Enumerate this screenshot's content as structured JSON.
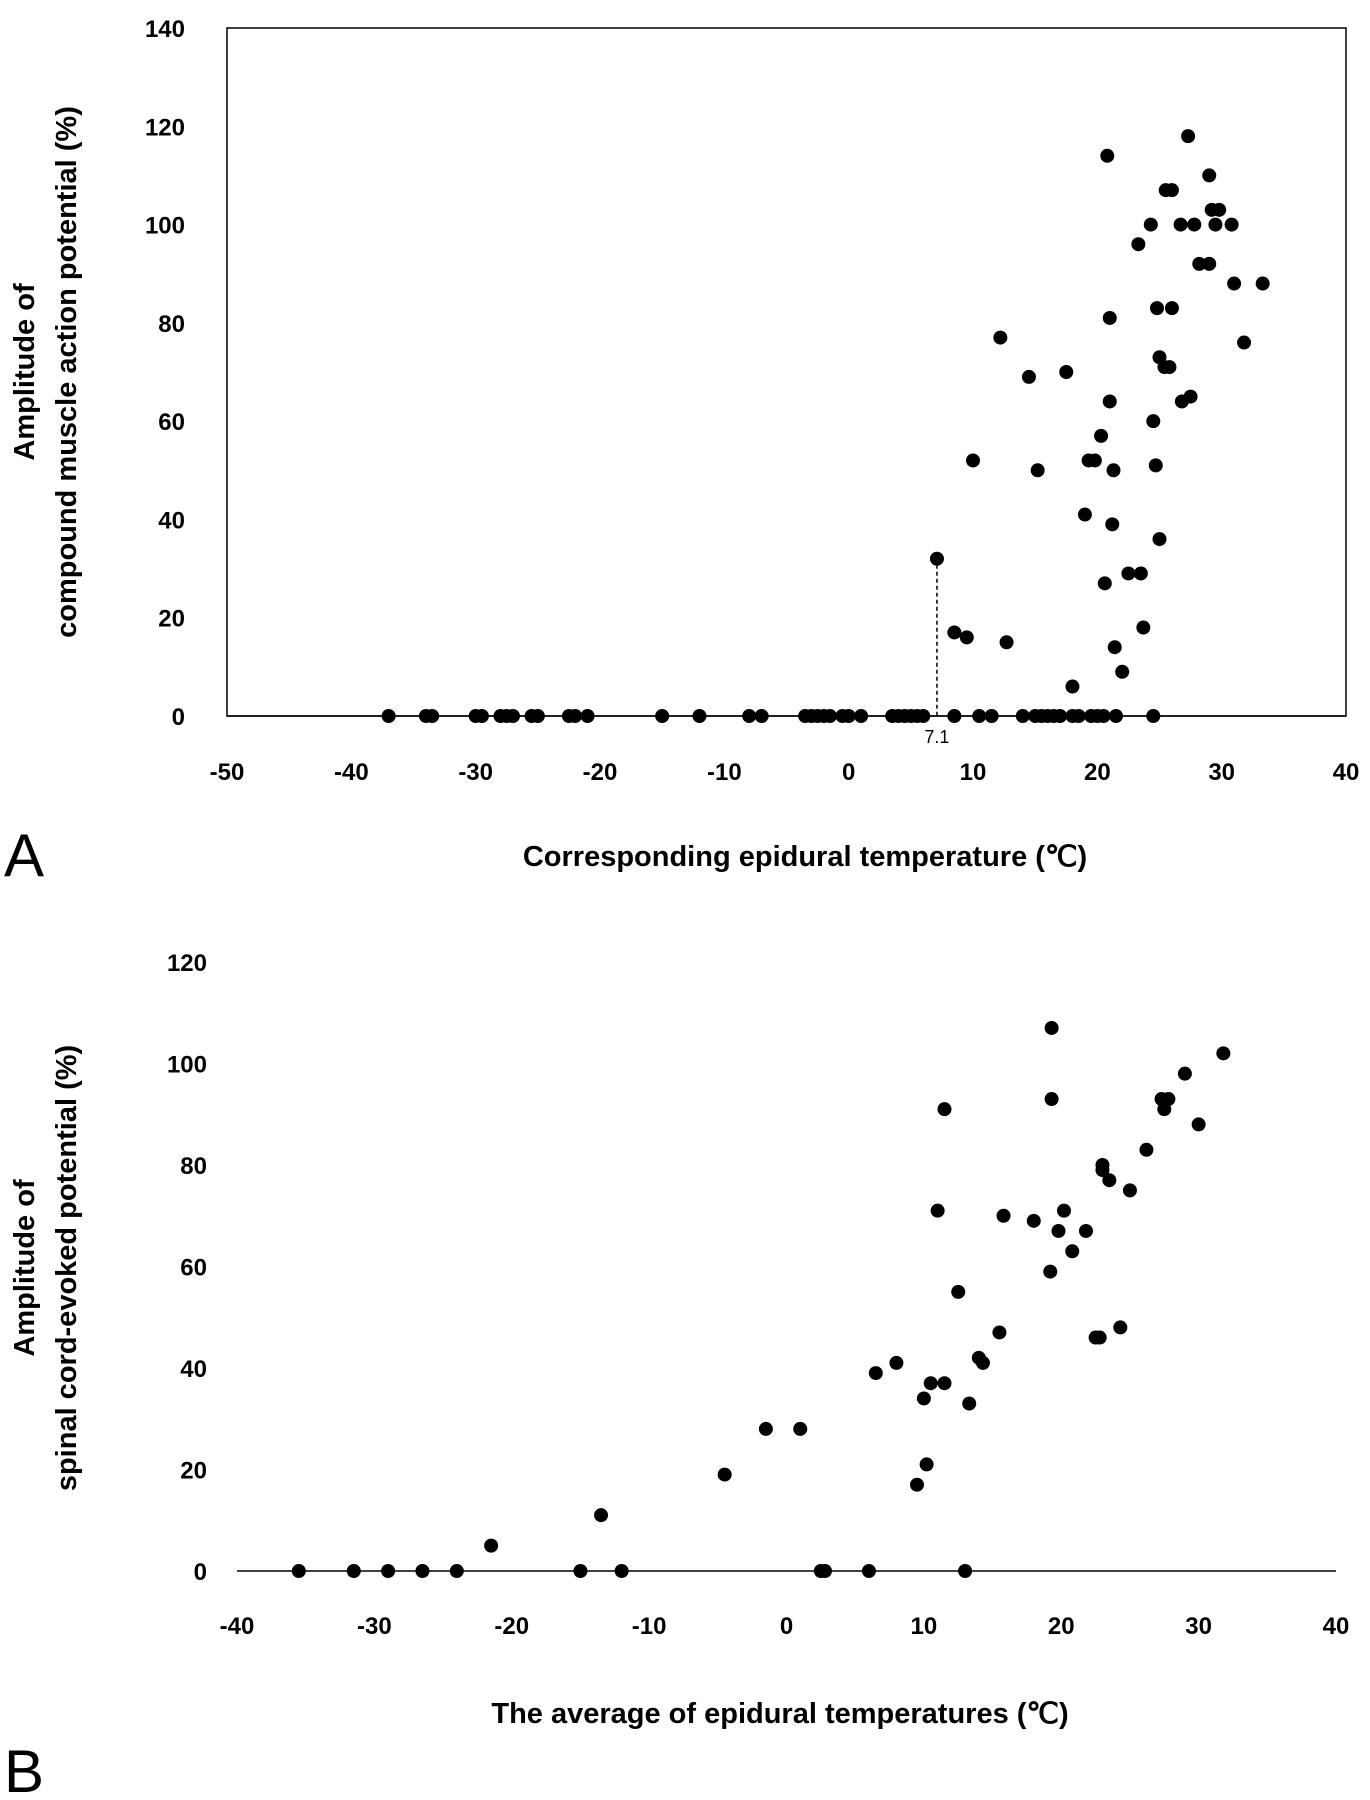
{
  "chart_data": [
    {
      "type": "scatter",
      "panel_label": "A",
      "xlabel": "Corresponding epidural temperature (℃)",
      "ylabel_lines": [
        "Amplitude of",
        "compound muscle action potential (%)"
      ],
      "xlim": [
        -50,
        40
      ],
      "ylim": [
        0,
        140
      ],
      "xticks": [
        -50,
        -40,
        -30,
        -20,
        -10,
        0,
        10,
        20,
        30,
        40
      ],
      "yticks": [
        0,
        20,
        40,
        60,
        80,
        100,
        120,
        140
      ],
      "grid": false,
      "annotation": {
        "text": "7.1",
        "x": 7.1,
        "y_from": 0,
        "y_to": 32,
        "style": "dashed vertical line"
      },
      "points": [
        [
          -37,
          0
        ],
        [
          -34,
          0
        ],
        [
          -33.5,
          0
        ],
        [
          -30,
          0
        ],
        [
          -29.5,
          0
        ],
        [
          -28,
          0
        ],
        [
          -27.5,
          0
        ],
        [
          -27,
          0
        ],
        [
          -25.5,
          0
        ],
        [
          -25,
          0
        ],
        [
          -22.5,
          0
        ],
        [
          -22,
          0
        ],
        [
          -21,
          0
        ],
        [
          -15,
          0
        ],
        [
          -12,
          0
        ],
        [
          -8,
          0
        ],
        [
          -7,
          0
        ],
        [
          -3.5,
          0
        ],
        [
          -3,
          0
        ],
        [
          -2.5,
          0
        ],
        [
          -2,
          0
        ],
        [
          -1.5,
          0
        ],
        [
          -0.5,
          0
        ],
        [
          0,
          0
        ],
        [
          1,
          0
        ],
        [
          3.5,
          0
        ],
        [
          4,
          0
        ],
        [
          4.5,
          0
        ],
        [
          5,
          0
        ],
        [
          5.5,
          0
        ],
        [
          6,
          0
        ],
        [
          8.5,
          0
        ],
        [
          10.5,
          0
        ],
        [
          11.5,
          0
        ],
        [
          14,
          0
        ],
        [
          15,
          0
        ],
        [
          15.5,
          0
        ],
        [
          16,
          0
        ],
        [
          16.5,
          0
        ],
        [
          17,
          0
        ],
        [
          18,
          0
        ],
        [
          18.5,
          0
        ],
        [
          19.5,
          0
        ],
        [
          20,
          0
        ],
        [
          20.5,
          0
        ],
        [
          21.5,
          0
        ],
        [
          24.5,
          0
        ],
        [
          7.1,
          32
        ],
        [
          8.5,
          17
        ],
        [
          9.5,
          16
        ],
        [
          10,
          52
        ],
        [
          12.2,
          77
        ],
        [
          12.7,
          15
        ],
        [
          14.5,
          69
        ],
        [
          15.2,
          50
        ],
        [
          17.5,
          70
        ],
        [
          18,
          6
        ],
        [
          19,
          41
        ],
        [
          19.3,
          52
        ],
        [
          19.8,
          52
        ],
        [
          20.3,
          57
        ],
        [
          20.6,
          27
        ],
        [
          20.8,
          114
        ],
        [
          21,
          81
        ],
        [
          21,
          64
        ],
        [
          21.2,
          39
        ],
        [
          21.3,
          50
        ],
        [
          21.4,
          14
        ],
        [
          22,
          9
        ],
        [
          22.5,
          29
        ],
        [
          23.3,
          96
        ],
        [
          23.5,
          29
        ],
        [
          23.7,
          18
        ],
        [
          24.3,
          100
        ],
        [
          24.5,
          60
        ],
        [
          24.7,
          51
        ],
        [
          24.8,
          83
        ],
        [
          25,
          36
        ],
        [
          25,
          73
        ],
        [
          25.4,
          71
        ],
        [
          25.5,
          107
        ],
        [
          25.8,
          71
        ],
        [
          26,
          83
        ],
        [
          26,
          107
        ],
        [
          26.7,
          100
        ],
        [
          26.8,
          64
        ],
        [
          27.3,
          118
        ],
        [
          27.5,
          65
        ],
        [
          27.8,
          100
        ],
        [
          28.2,
          92
        ],
        [
          29,
          110
        ],
        [
          29,
          92
        ],
        [
          29.2,
          103
        ],
        [
          29.5,
          100
        ],
        [
          29.8,
          103
        ],
        [
          30.8,
          100
        ],
        [
          31,
          88
        ],
        [
          31.8,
          76
        ],
        [
          33.3,
          88
        ]
      ]
    },
    {
      "type": "scatter",
      "panel_label": "B",
      "xlabel": "The average of epidural temperatures (℃)",
      "ylabel_lines": [
        "Amplitude of",
        "spinal cord-evoked potential (%)"
      ],
      "xlim": [
        -40,
        40
      ],
      "ylim": [
        0,
        120
      ],
      "xticks": [
        -40,
        -30,
        -20,
        -10,
        0,
        10,
        20,
        30,
        40
      ],
      "yticks": [
        0,
        20,
        40,
        60,
        80,
        100,
        120
      ],
      "grid": false,
      "points": [
        [
          -35.5,
          0
        ],
        [
          -31.5,
          0
        ],
        [
          -29,
          0
        ],
        [
          -26.5,
          0
        ],
        [
          -24,
          0
        ],
        [
          -21.5,
          5
        ],
        [
          -15,
          0
        ],
        [
          -13.5,
          11
        ],
        [
          -12,
          0
        ],
        [
          -4.5,
          19
        ],
        [
          -1.5,
          28
        ],
        [
          1,
          28
        ],
        [
          2.5,
          0
        ],
        [
          2.8,
          0
        ],
        [
          6,
          0
        ],
        [
          6.5,
          39
        ],
        [
          8,
          41
        ],
        [
          9.5,
          17
        ],
        [
          10,
          34
        ],
        [
          10.2,
          21
        ],
        [
          10.5,
          37
        ],
        [
          11,
          71
        ],
        [
          11.5,
          91
        ],
        [
          11.5,
          37
        ],
        [
          12.5,
          55
        ],
        [
          13,
          0
        ],
        [
          13.3,
          33
        ],
        [
          14,
          42
        ],
        [
          14.3,
          41
        ],
        [
          15.5,
          47
        ],
        [
          15.8,
          70
        ],
        [
          18,
          69
        ],
        [
          19.2,
          59
        ],
        [
          19.3,
          107
        ],
        [
          19.3,
          93
        ],
        [
          19.8,
          67
        ],
        [
          20.2,
          71
        ],
        [
          20.8,
          63
        ],
        [
          21.8,
          67
        ],
        [
          22.5,
          46
        ],
        [
          22.8,
          46
        ],
        [
          23,
          79
        ],
        [
          23,
          80
        ],
        [
          23.5,
          77
        ],
        [
          24.3,
          48
        ],
        [
          25,
          75
        ],
        [
          26.2,
          83
        ],
        [
          27.3,
          93
        ],
        [
          27.5,
          91
        ],
        [
          27.8,
          93
        ],
        [
          29,
          98
        ],
        [
          30,
          88
        ],
        [
          31.8,
          102
        ]
      ]
    }
  ]
}
